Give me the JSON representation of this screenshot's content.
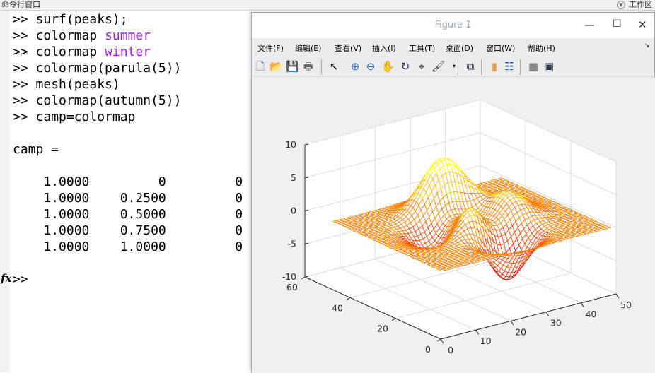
{
  "command_window": {
    "title": "命令行窗口",
    "lines": [
      {
        "prompt": ">> ",
        "code": "surf(peaks);",
        "kw": ""
      },
      {
        "prompt": ">> ",
        "code": "colormap ",
        "kw": "summer"
      },
      {
        "prompt": ">> ",
        "code": "colormap ",
        "kw": "winter"
      },
      {
        "prompt": ">> ",
        "code": "colormap(parula(5))",
        "kw": ""
      },
      {
        "prompt": ">> ",
        "code": "mesh(peaks)",
        "kw": ""
      },
      {
        "prompt": ">> ",
        "code": "colormap(autumn(5))",
        "kw": ""
      },
      {
        "prompt": ">> ",
        "code": "camp=colormap",
        "kw": ""
      }
    ],
    "output_header": "camp =",
    "output_rows": [
      "    1.0000         0         0",
      "    1.0000    0.2500         0",
      "    1.0000    0.5000         0",
      "    1.0000    0.7500         0",
      "    1.0000    1.0000         0"
    ],
    "prompt": ">>",
    "fx": "fx"
  },
  "workspace_title": "工作区",
  "figure": {
    "title": "Figure 1",
    "menu": [
      "文件(F)",
      "编辑(E)",
      "查看(V)",
      "插入(I)",
      "工具(T)",
      "桌面(D)",
      "窗口(W)",
      "帮助(H)"
    ],
    "toolbar": [
      "new-figure",
      "open",
      "save",
      "print",
      "select",
      "zoom-in",
      "zoom-out",
      "pan",
      "rotate-3d",
      "data-cursor",
      "brush",
      "link-plot",
      "colorbar",
      "legend",
      "hide-plot-tools",
      "show-plot-tools"
    ]
  },
  "chart_data": {
    "type": "mesh",
    "function": "peaks",
    "grid_size": 49,
    "colormap": [
      "#ff0000",
      "#ff4000",
      "#ff8000",
      "#ffbf00",
      "#ffff00"
    ],
    "xlim": [
      0,
      50
    ],
    "ylim": [
      0,
      60
    ],
    "zlim": [
      -10,
      10
    ],
    "xticks": [
      0,
      10,
      20,
      30,
      40,
      50
    ],
    "yticks": [
      0,
      20,
      40,
      60
    ],
    "zticks": [
      -10,
      -5,
      0,
      5,
      10
    ],
    "view": [
      -37.5,
      30
    ],
    "grid": true
  }
}
